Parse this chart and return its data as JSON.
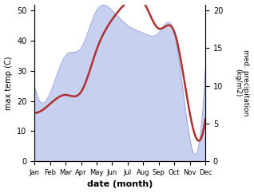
{
  "months": [
    "Jan",
    "Feb",
    "Mar",
    "Apr",
    "May",
    "Jun",
    "Jul",
    "Aug",
    "Sep",
    "Oct",
    "Nov",
    "Dec"
  ],
  "temperature": [
    16,
    19,
    22,
    23,
    37,
    47,
    53,
    53,
    44,
    43,
    16,
    14
  ],
  "precipitation": [
    10,
    9,
    14,
    15,
    20,
    20,
    18,
    17,
    17,
    17,
    3,
    12
  ],
  "temp_color": "#b03030",
  "precip_fill_color": "#c8d0f0",
  "precip_line_color": "#a0aade",
  "temp_ylim": [
    0,
    52
  ],
  "precip_ylim": [
    0,
    20.8
  ],
  "temp_yticks": [
    0,
    10,
    20,
    30,
    40,
    50
  ],
  "precip_yticks": [
    0,
    5,
    10,
    15,
    20
  ],
  "xlabel": "date (month)",
  "ylabel_left": "max temp (C)",
  "ylabel_right": "med. precipitation\n(kg/m2)",
  "fig_width": 3.18,
  "fig_height": 2.42,
  "dpi": 100
}
